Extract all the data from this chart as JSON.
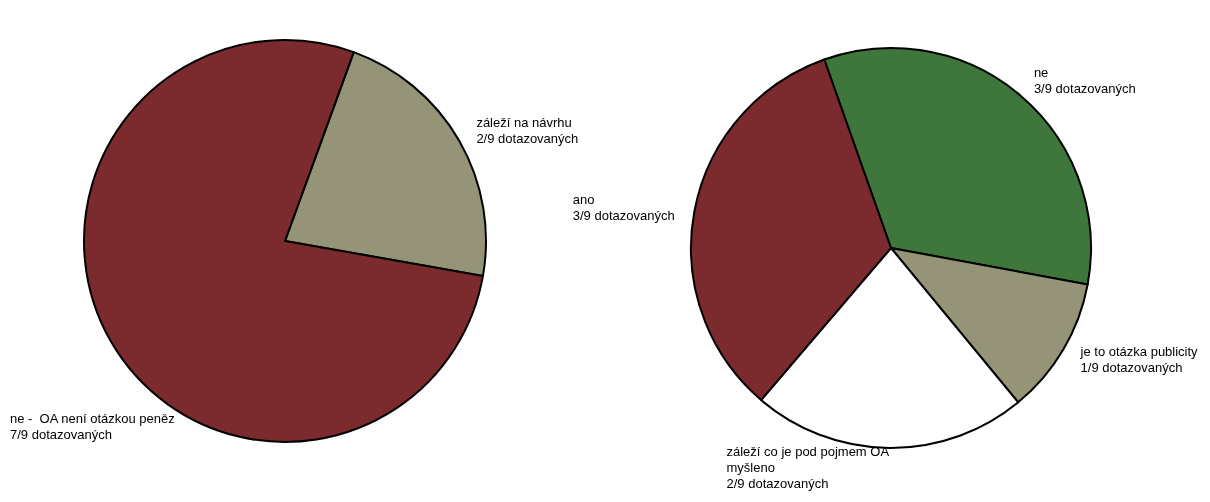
{
  "chart_data": [
    {
      "type": "pie",
      "categories": [
        "záleží na návrhu\n2/9 dotazovaných",
        "ne -  OA není otázkou peněz\n7/9 dotazovaných"
      ],
      "values": [
        2,
        7
      ],
      "colors": [
        "#959378",
        "#7b2a2e"
      ]
    },
    {
      "type": "pie",
      "categories": [
        "ne\n3/9 dotazovaných",
        "je to otázka publicity\n1/9 dotazovaných",
        "záleží co je pod pojmem OA\nmyšleno\n2/9 dotazovaných",
        "ano\n3/9 dotazovaných"
      ],
      "values": [
        3,
        1,
        2,
        3
      ],
      "colors": [
        "#3e763c",
        "#959378",
        "#ffffff",
        "#7b2a2e"
      ]
    }
  ]
}
